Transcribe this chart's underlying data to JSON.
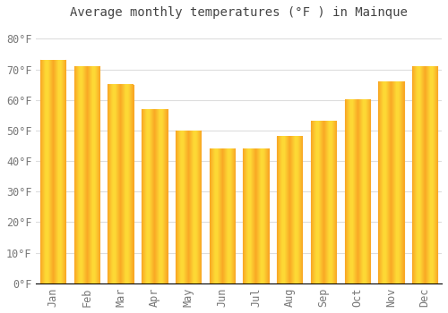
{
  "title": "Average monthly temperatures (°F ) in Mainque",
  "months": [
    "Jan",
    "Feb",
    "Mar",
    "Apr",
    "May",
    "Jun",
    "Jul",
    "Aug",
    "Sep",
    "Oct",
    "Nov",
    "Dec"
  ],
  "values": [
    73,
    71,
    65,
    57,
    50,
    44,
    44,
    48,
    53,
    60,
    66,
    71
  ],
  "bar_color_center": "#FDD835",
  "bar_color_edge": "#F9A825",
  "bar_width": 0.75,
  "ylim": [
    0,
    85
  ],
  "yticks": [
    0,
    10,
    20,
    30,
    40,
    50,
    60,
    70,
    80
  ],
  "ytick_labels": [
    "0°F",
    "10°F",
    "20°F",
    "30°F",
    "40°F",
    "50°F",
    "60°F",
    "70°F",
    "80°F"
  ],
  "background_color": "#FFFFFF",
  "grid_color": "#DDDDDD",
  "title_fontsize": 10,
  "tick_fontsize": 8.5,
  "tick_color": "#777777",
  "title_color": "#444444",
  "axis_line_color": "#AAAAAA"
}
